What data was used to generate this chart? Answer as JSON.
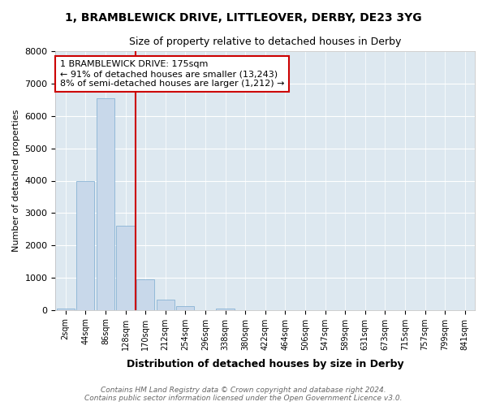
{
  "title1": "1, BRAMBLEWICK DRIVE, LITTLEOVER, DERBY, DE23 3YG",
  "title2": "Size of property relative to detached houses in Derby",
  "xlabel": "Distribution of detached houses by size in Derby",
  "ylabel": "Number of detached properties",
  "footer": "Contains HM Land Registry data © Crown copyright and database right 2024.\nContains public sector information licensed under the Open Government Licence v3.0.",
  "bar_labels": [
    "2sqm",
    "44sqm",
    "86sqm",
    "128sqm",
    "170sqm",
    "212sqm",
    "254sqm",
    "296sqm",
    "338sqm",
    "380sqm",
    "422sqm",
    "464sqm",
    "506sqm",
    "547sqm",
    "589sqm",
    "631sqm",
    "673sqm",
    "715sqm",
    "757sqm",
    "799sqm",
    "841sqm"
  ],
  "bar_values": [
    40,
    3980,
    6550,
    2600,
    950,
    330,
    120,
    0,
    50,
    0,
    0,
    0,
    0,
    0,
    0,
    0,
    0,
    0,
    0,
    0,
    0
  ],
  "bar_color": "#c8d8ea",
  "bar_edge_color": "#7aaad0",
  "vline_x_index": 4,
  "vline_color": "#cc0000",
  "ylim": [
    0,
    8000
  ],
  "yticks": [
    0,
    1000,
    2000,
    3000,
    4000,
    5000,
    6000,
    7000,
    8000
  ],
  "annotation_text": "1 BRAMBLEWICK DRIVE: 175sqm\n← 91% of detached houses are smaller (13,243)\n8% of semi-detached houses are larger (1,212) →",
  "annotation_box_color": "#cc0000",
  "plot_bg_color": "#dde8f0",
  "fig_bg_color": "#ffffff",
  "grid_color": "#ffffff"
}
